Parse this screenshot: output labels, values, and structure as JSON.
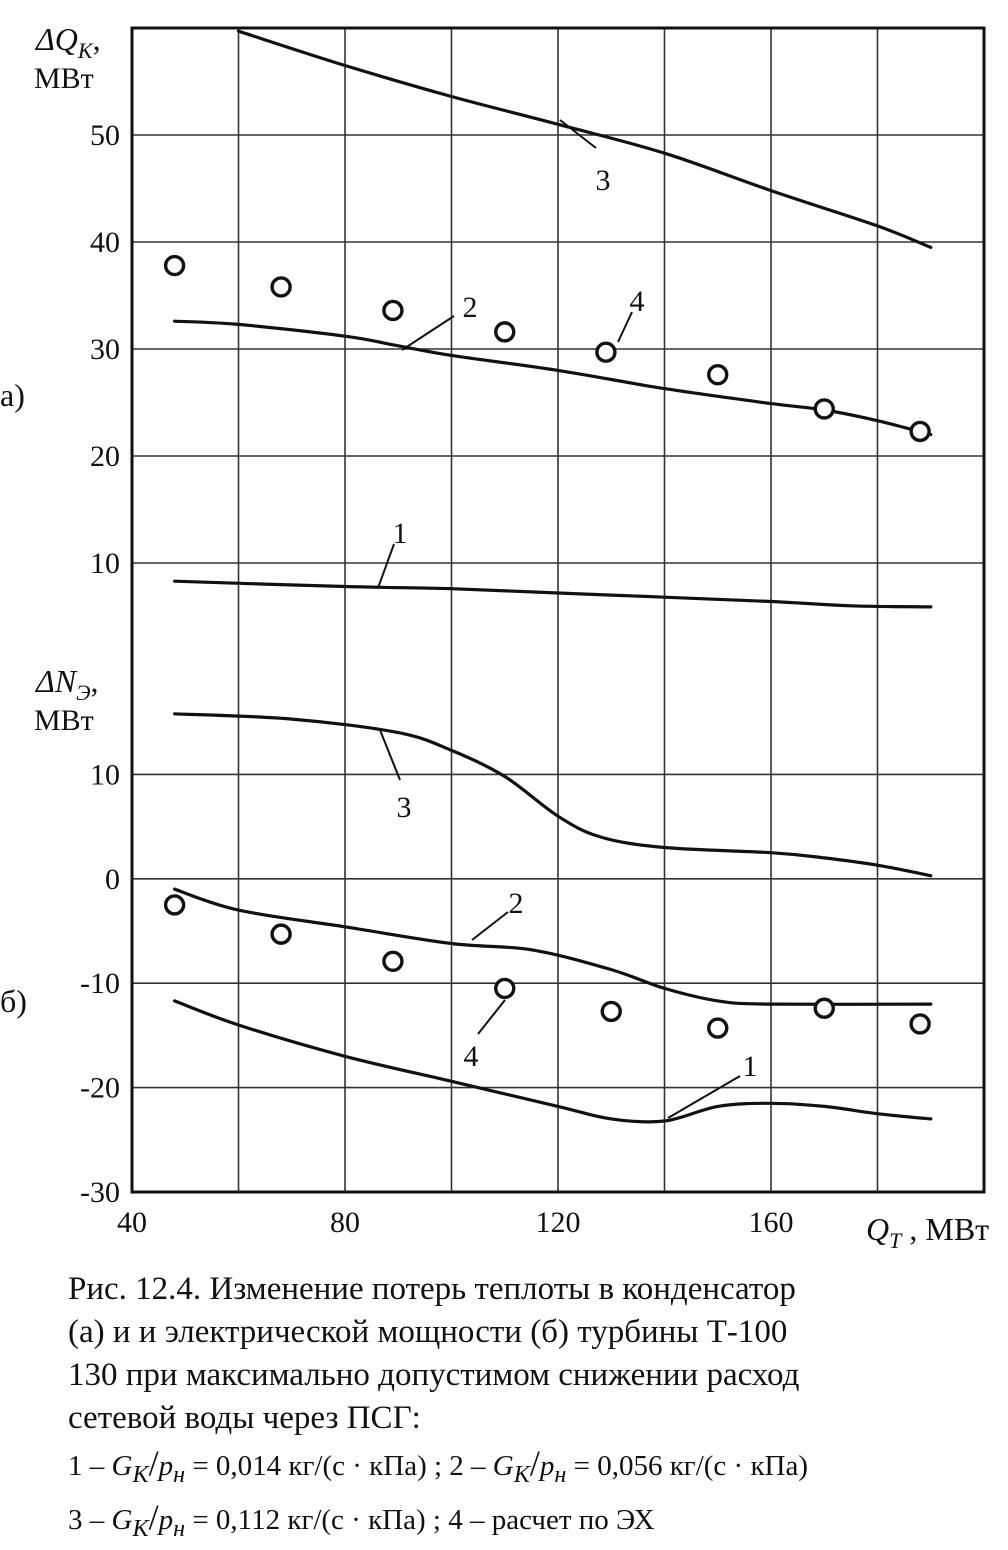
{
  "chart_data": [
    {
      "panel_id": "a",
      "type": "line",
      "panel_label": "а)",
      "ylabel": [
        "ΔQ",
        "K",
        ", ",
        "МВт"
      ],
      "ylim": [
        0,
        60
      ],
      "yticks": [
        {
          "value": 10,
          "label": "10"
        },
        {
          "value": 20,
          "label": "20"
        },
        {
          "value": 30,
          "label": "30"
        },
        {
          "value": 40,
          "label": "40"
        },
        {
          "value": 50,
          "label": "50"
        }
      ],
      "series": [
        {
          "id": "s3",
          "label": "3",
          "points": [
            [
              60,
              59.7
            ],
            [
              80,
              56.5
            ],
            [
              100,
              53.6
            ],
            [
              120,
              51.0
            ],
            [
              140,
              48.3
            ],
            [
              160,
              44.8
            ],
            [
              180,
              41.5
            ],
            [
              190,
              39.5
            ]
          ]
        },
        {
          "id": "s2",
          "label": "2",
          "points": [
            [
              48,
              32.6
            ],
            [
              60,
              32.3
            ],
            [
              80,
              31.2
            ],
            [
              90,
              30.3
            ],
            [
              100,
              29.4
            ],
            [
              120,
              28.0
            ],
            [
              140,
              26.3
            ],
            [
              160,
              24.9
            ],
            [
              170,
              24.3
            ],
            [
              180,
              23.3
            ],
            [
              190,
              22.0
            ]
          ]
        },
        {
          "id": "s1",
          "label": "1",
          "points": [
            [
              48,
              8.3
            ],
            [
              80,
              7.8
            ],
            [
              100,
              7.6
            ],
            [
              120,
              7.2
            ],
            [
              140,
              6.8
            ],
            [
              160,
              6.4
            ],
            [
              175,
              6.0
            ],
            [
              190,
              5.9
            ]
          ]
        }
      ],
      "markers": {
        "label": "4",
        "points": [
          [
            48,
            37.8
          ],
          [
            68,
            35.8
          ],
          [
            89,
            33.6
          ],
          [
            110,
            31.6
          ],
          [
            129,
            29.7
          ],
          [
            150,
            27.6
          ],
          [
            170,
            24.4
          ],
          [
            188,
            22.3
          ]
        ]
      }
    },
    {
      "panel_id": "b",
      "type": "line",
      "panel_label": "б)",
      "ylabel": [
        "ΔN",
        "Э",
        ", ",
        "МВт"
      ],
      "ylim": [
        -30,
        20
      ],
      "yticks": [
        {
          "value": -30,
          "label": "-30"
        },
        {
          "value": -20,
          "label": "-20"
        },
        {
          "value": -10,
          "label": "-10"
        },
        {
          "value": 0,
          "label": "0"
        },
        {
          "value": 10,
          "label": "10"
        }
      ],
      "series": [
        {
          "id": "s3",
          "label": "3",
          "points": [
            [
              48,
              15.8
            ],
            [
              70,
              15.3
            ],
            [
              90,
              14.0
            ],
            [
              100,
              12.3
            ],
            [
              110,
              9.8
            ],
            [
              120,
              6.0
            ],
            [
              128,
              4.0
            ],
            [
              140,
              3.0
            ],
            [
              160,
              2.5
            ],
            [
              170,
              2.0
            ],
            [
              180,
              1.3
            ],
            [
              190,
              0.3
            ]
          ]
        },
        {
          "id": "s2",
          "label": "2",
          "points": [
            [
              48,
              -1.0
            ],
            [
              60,
              -3.0
            ],
            [
              80,
              -4.6
            ],
            [
              100,
              -6.2
            ],
            [
              115,
              -6.8
            ],
            [
              130,
              -8.7
            ],
            [
              140,
              -10.5
            ],
            [
              150,
              -11.7
            ],
            [
              160,
              -12.0
            ],
            [
              190,
              -12.0
            ]
          ]
        },
        {
          "id": "s1",
          "label": "1",
          "points": [
            [
              48,
              -11.7
            ],
            [
              60,
              -14.0
            ],
            [
              80,
              -17.0
            ],
            [
              100,
              -19.4
            ],
            [
              120,
              -21.8
            ],
            [
              130,
              -23.0
            ],
            [
              140,
              -23.2
            ],
            [
              150,
              -21.8
            ],
            [
              160,
              -21.5
            ],
            [
              170,
              -21.8
            ],
            [
              180,
              -22.5
            ],
            [
              190,
              -23.0
            ]
          ]
        }
      ],
      "markers": {
        "label": "4",
        "points": [
          [
            48,
            -2.5
          ],
          [
            68,
            -5.3
          ],
          [
            89,
            -7.9
          ],
          [
            110,
            -10.5
          ],
          [
            130,
            -12.7
          ],
          [
            150,
            -14.3
          ],
          [
            170,
            -12.4
          ],
          [
            188,
            -13.9
          ]
        ]
      }
    }
  ],
  "x_axis": {
    "xlim": [
      40,
      200
    ],
    "ticks": [
      {
        "value": 40,
        "label": "40"
      },
      {
        "value": 80,
        "label": "80"
      },
      {
        "value": 120,
        "label": "120"
      },
      {
        "value": 160,
        "label": "160"
      }
    ],
    "label": [
      "Q",
      "T",
      " , МВт"
    ]
  },
  "caption": [
    "Рис. 12.4. Изменение потерь теплоты в конденсатор",
    "(а) и и электрической мощности (б) турбины Т-100",
    "130 при максимально допустимом снижении расход",
    "сетевой воды через ПСГ:"
  ],
  "legend": [
    [
      "1 – ",
      "G",
      "K",
      "/",
      "p",
      "н",
      " = 0,014 кг/(с · кПа) ; 2 – ",
      "G",
      "K",
      "/",
      "p",
      "н",
      " = 0,056 кг/(с · кПа)"
    ],
    [
      "3 – ",
      "G",
      "K",
      "/",
      "p",
      "н",
      " = 0,112 кг/(с · кПа) ; 4 – расчет по ЭХ"
    ]
  ]
}
